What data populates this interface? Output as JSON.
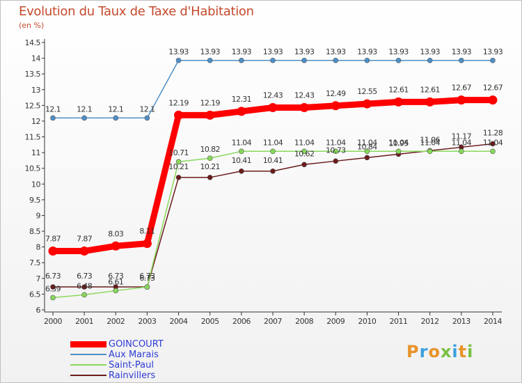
{
  "title": "Evolution du Taux de Taxe d'Habitation",
  "unit": "(en %)",
  "brand": {
    "letters": [
      "P",
      "r",
      "o",
      "x",
      "i",
      "t",
      "i"
    ],
    "colors": [
      "#e8932a",
      "#3aa0dc",
      "#e8932a",
      "#79c043",
      "#3aa0dc",
      "#e8932a",
      "#79c043"
    ]
  },
  "chart_data": {
    "type": "line",
    "title": "Evolution du Taux de Taxe d'Habitation",
    "ylabel": "(en %)",
    "x": [
      "2000",
      "2001",
      "2002",
      "2003",
      "2004",
      "2005",
      "2006",
      "2007",
      "2008",
      "2009",
      "2010",
      "2011",
      "2012",
      "2013",
      "2014"
    ],
    "ylim": [
      6,
      14.5
    ],
    "yticks": [
      "6",
      "6.5",
      "7",
      "7.5",
      "8",
      "8.5",
      "9",
      "9.5",
      "10",
      "10.5",
      "11",
      "11.5",
      "12",
      "12.5",
      "13",
      "13.5",
      "14",
      "14.5"
    ],
    "grid": false,
    "series": [
      {
        "name": "GOINCOURT",
        "color": "#ff0000",
        "values": [
          7.87,
          7.87,
          8.03,
          8.11,
          12.19,
          12.19,
          12.31,
          12.43,
          12.43,
          12.49,
          12.55,
          12.61,
          12.61,
          12.67,
          12.67
        ],
        "labels": [
          "7.87",
          "7.87",
          "8.03",
          "8.11",
          "12.19",
          "12.19",
          "12.31",
          "12.43",
          "12.43",
          "12.49",
          "12.55",
          "12.61",
          "12.61",
          "12.67",
          "12.67"
        ]
      },
      {
        "name": "Aux Marais",
        "color": "#4d8fc6",
        "values": [
          12.1,
          12.1,
          12.1,
          12.1,
          13.93,
          13.93,
          13.93,
          13.93,
          13.93,
          13.93,
          13.93,
          13.93,
          13.93,
          13.93,
          13.93
        ],
        "labels": [
          "12.1",
          "12.1",
          "12.1",
          "12.1",
          "13.93",
          "13.93",
          "13.93",
          "13.93",
          "13.93",
          "13.93",
          "13.93",
          "13.93",
          "13.93",
          "13.93",
          "13.93"
        ]
      },
      {
        "name": "Saint-Paul",
        "color": "#88d85a",
        "values": [
          6.39,
          6.48,
          6.61,
          6.73,
          10.71,
          10.82,
          11.04,
          11.04,
          11.04,
          11.04,
          11.04,
          11.04,
          11.04,
          11.04,
          11.04
        ],
        "labels": [
          "6.39",
          "6.48",
          "6.61",
          "6.73",
          "10.71",
          "10.82",
          "11.04",
          "11.04",
          "11.04",
          "11.04",
          "11.04",
          "11.04",
          "11.04",
          "11.04",
          "11.04"
        ]
      },
      {
        "name": "Rainvillers",
        "color": "#6b1b1b",
        "values": [
          6.73,
          6.73,
          6.73,
          6.73,
          10.21,
          10.21,
          10.41,
          10.41,
          10.62,
          10.73,
          10.84,
          10.95,
          11.06,
          11.17,
          11.28
        ],
        "labels": [
          "6.73",
          "6.73",
          "6.73",
          "6.73",
          "10.21",
          "10.21",
          "10.41",
          "10.41",
          "10.62",
          "10.73",
          "10.84",
          "10.95",
          "11.06",
          "11.17",
          "11.28"
        ]
      }
    ],
    "legend": "bottom-left"
  }
}
